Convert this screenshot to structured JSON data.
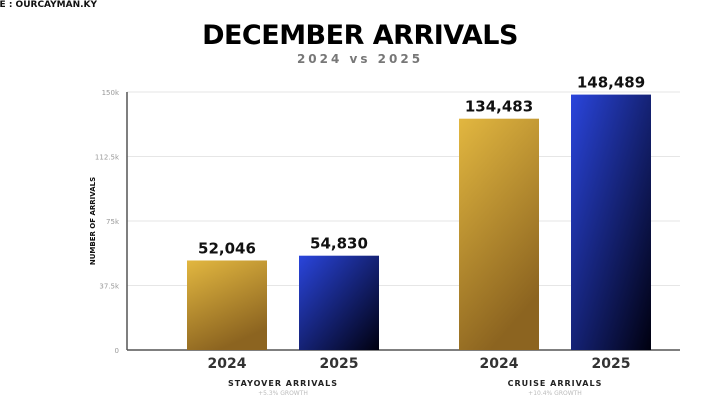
{
  "source": "RCE : OURCAYMAN.KY",
  "chart_data": {
    "type": "bar",
    "title": "DECEMBER ARRIVALS",
    "subtitle": "2024 vs 2025",
    "ylabel": "NUMBER OF ARRIVALS",
    "ylim": [
      0,
      150000
    ],
    "yticks": [
      0,
      37500,
      75000,
      112500,
      150000
    ],
    "ytick_labels": [
      "0",
      "37.5k",
      "75k",
      "112.5k",
      "150k"
    ],
    "grid": true,
    "groups": [
      {
        "name": "STAYOVER ARRIVALS",
        "note": "+5.3% GROWTH",
        "bars": [
          {
            "category": "2024",
            "value": 52046,
            "label": "52,046"
          },
          {
            "category": "2025",
            "value": 54830,
            "label": "54,830"
          }
        ]
      },
      {
        "name": "CRUISE ARRIVALS",
        "note": "+10.4% GROWTH",
        "bars": [
          {
            "category": "2024",
            "value": 134483,
            "label": "134,483"
          },
          {
            "category": "2025",
            "value": 148489,
            "label": "148,489"
          }
        ]
      }
    ],
    "colors": {
      "2024": [
        "#e2b740",
        "#8c6420"
      ],
      "2025": [
        "#2a45dc",
        "#00000f"
      ]
    }
  }
}
